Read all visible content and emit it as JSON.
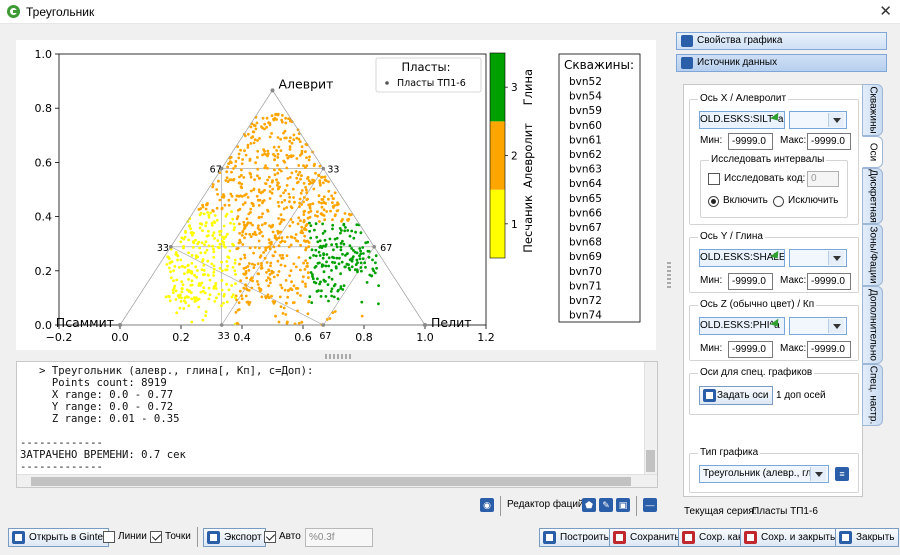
{
  "window": {
    "title": "Треугольник",
    "close_glyph": "✕",
    "app_icon": "gintel-logo-icon"
  },
  "chart_data": {
    "type": "scatter",
    "subtype": "ternary",
    "vertices": {
      "top": "Алеврит",
      "left": "Псаммит",
      "right": "Пелит"
    },
    "xlim": [
      -0.2,
      1.2
    ],
    "ylim": [
      0.0,
      1.0
    ],
    "xticks": [
      "−0.2",
      "0.0",
      "0.2",
      "0.4",
      "0.6",
      "0.8",
      "1.0",
      "1.2"
    ],
    "yticks": [
      "0.0",
      "0.2",
      "0.4",
      "0.6",
      "0.8",
      "1.0"
    ],
    "inner_labels": [
      "67",
      "33",
      "33",
      "67",
      "33",
      "67"
    ],
    "legend": {
      "title": "Пласты:",
      "entries": [
        "Пласты ТП1-6"
      ],
      "placement": "top-right"
    },
    "colorbar": {
      "ticks": [
        "1",
        "2",
        "3"
      ],
      "labels": [
        "Песчаник",
        "Алевролит",
        "Глина"
      ],
      "colors": [
        "#ffff00",
        "#ffa500",
        "#00a000"
      ]
    },
    "wells_title": "Скважины:",
    "wells": [
      "bvn52",
      "bvn54",
      "bvn59",
      "bvn60",
      "bvn61",
      "bvn62",
      "bvn63",
      "bvn64",
      "bvn65",
      "bvn66",
      "bvn67",
      "bvn68",
      "bvn69",
      "bvn70",
      "bvn71",
      "bvn72",
      "bvn74"
    ]
  },
  "console": {
    "lines": [
      "   > Треугольник (алевр., глина[, Кп], c=Доп):",
      "     Points count: 8919",
      "     X range: 0.0 - 0.77",
      "     Y range: 0.0 - 0.72",
      "     Z range: 0.01 - 0.35",
      "",
      "-------------",
      "ЗАТРАЧЕНО ВРЕМЕНИ: 0.7 сек",
      "-------------"
    ]
  },
  "facies": {
    "label": "Редактор фаций:"
  },
  "toolbar": {
    "open_gintel": "Открыть в Gintel",
    "lines": "Линии",
    "points": "Точки",
    "export": "Экспорт",
    "auto": "Авто",
    "format_placeholder": "%0.3f",
    "build": "Построить",
    "save": "Сохранить",
    "save_as": "Сохр. как",
    "save_close": "Сохр. и закрыть",
    "close": "Закрыть"
  },
  "right_panel": {
    "graph_props": "Свойства графика",
    "data_source": "Источник данных",
    "tabs": [
      "Скважины",
      "Оси",
      "Дискретная",
      "Зоны/Фации",
      "Дополнительно",
      "Спец. настр."
    ],
    "axis_x": {
      "title": "Ось X / Алевролит",
      "value": "OLD.ESKS:SILT^a",
      "min_label": "Мин:",
      "min": "-9999.0",
      "max_label": "Макс:",
      "max": "-9999.0"
    },
    "intervals": {
      "title": "Исследовать интервалы",
      "code_label": "Исследовать код:",
      "code_value": "0",
      "include": "Включить",
      "exclude": "Исключить"
    },
    "axis_y": {
      "title": "Ось Y / Глина",
      "value": "OLD.ESKS:SHALE^a",
      "min_label": "Мин:",
      "min": "-9999.0",
      "max_label": "Макс:",
      "max": "-9999.0"
    },
    "axis_z": {
      "title": "Ось Z (обычно цвет) / Кп",
      "value": "OLD.ESKS:PHI^a",
      "min_label": "Мин:",
      "min": "-9999.0",
      "max_label": "Макс:",
      "max": "-9999.0"
    },
    "special_axes": {
      "title": "Оси для спец. графиков",
      "button": "Задать оси",
      "info": "1 доп осей"
    },
    "graph_type": {
      "title": "Тип графика",
      "value": "Треугольник (алевр., гли"
    },
    "current_series_label": "Текущая серия:",
    "current_series": "Пласты ТП1-6"
  }
}
